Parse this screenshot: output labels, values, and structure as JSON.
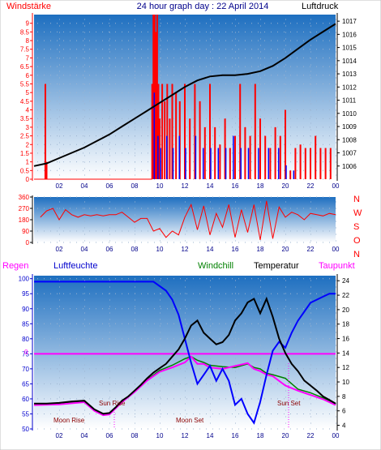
{
  "header": {
    "title": "24 hour graph day : 22 April 2014",
    "left_label": "Windstärke",
    "right_label": "Luftdruck"
  },
  "direction_labels": [
    "N",
    "W",
    "S",
    "O",
    "N"
  ],
  "bottom_header": {
    "regen": "Regen",
    "luftfeuchte": "Luftfeuchte",
    "windchill": "Windchill",
    "temperatur": "Temperatur",
    "taupunkt": "Taupunkt"
  },
  "annotations": {
    "sun_rise": "Sun Rise",
    "sun_set": "Sun Set",
    "moon_rise": "Moon Rise",
    "moon_set": "Moon Set"
  },
  "colors": {
    "wind_gust": "#ff0000",
    "wind_avg": "#0000ff",
    "pressure": "#000000",
    "humidity": "#0000ff",
    "temperature": "#000000",
    "windchill": "#008000",
    "dewpoint": "#ff00ff",
    "rain": "#ff00ff",
    "plot_top": "#1e6fc0",
    "plot_bottom": "#ffffff"
  },
  "chart_data": [
    {
      "type": "line",
      "title": "24 hour graph day : 22 April 2014",
      "x_ticks": [
        "02",
        "04",
        "06",
        "08",
        "10",
        "12",
        "14",
        "16",
        "18",
        "20",
        "22",
        "00"
      ],
      "xlim": [
        0,
        24
      ],
      "ylabel": "Windstärke",
      "ylim": [
        0,
        9.5
      ],
      "y_ticks": [
        0,
        0.5,
        1,
        1.5,
        2,
        2.5,
        3,
        3.5,
        4,
        4.5,
        5,
        5.5,
        6,
        6.5,
        7,
        7.5,
        8,
        8.5,
        9
      ],
      "y2label": "Luftdruck",
      "y2lim": [
        1005,
        1017.5
      ],
      "y2_ticks": [
        1006,
        1007,
        1008,
        1009,
        1010,
        1011,
        1012,
        1013,
        1014,
        1015,
        1016,
        1017
      ],
      "series": [
        {
          "name": "Windstärke",
          "axis": "left",
          "x": [
            0.9,
            0.9,
            1.0,
            1.0,
            9.4,
            9.5,
            9.6,
            9.7,
            9.8,
            9.9,
            10.0,
            10.2,
            10.4,
            10.6,
            10.8,
            11.0,
            11.3,
            11.6,
            12.0,
            12.4,
            12.8,
            13.2,
            13.6,
            14.0,
            14.4,
            14.8,
            15.2,
            15.6,
            16.0,
            16.4,
            16.8,
            17.2,
            17.6,
            18.0,
            18.4,
            18.8,
            19.2,
            19.6,
            20.0,
            20.4,
            20.8,
            21.2,
            21.6,
            22.0,
            22.4,
            22.8,
            23.2,
            23.6
          ],
          "y": [
            5.5,
            1.8,
            1.0,
            0.0,
            5.5,
            9.5,
            9.5,
            8.5,
            9.5,
            5.5,
            3.5,
            5.5,
            4.5,
            5.5,
            3.5,
            5.5,
            5.0,
            4.5,
            5.5,
            3.5,
            5.5,
            4.5,
            3.0,
            5.5,
            3.0,
            2.0,
            3.5,
            1.8,
            2.5,
            5.5,
            3.0,
            2.5,
            5.5,
            3.5,
            2.5,
            1.8,
            3.0,
            2.5,
            4.0,
            0.5,
            1.8,
            2.0,
            1.8,
            1.8,
            2.5,
            1.8,
            1.8,
            1.8
          ]
        },
        {
          "name": "Windstärke (Mittel)",
          "axis": "left",
          "x": [
            9.5,
            9.8,
            10.0,
            10.5,
            11.0,
            11.5,
            12.0,
            12.8,
            13.4,
            14.0,
            14.6,
            15.2,
            15.8,
            16.4,
            17.0,
            17.8,
            18.6,
            19.4,
            20.0,
            20.6
          ],
          "y": [
            5.0,
            2.5,
            1.8,
            2.5,
            1.8,
            2.5,
            1.8,
            2.5,
            1.8,
            1.8,
            1.8,
            1.8,
            2.5,
            1.8,
            1.8,
            1.8,
            1.8,
            1.8,
            0.8,
            0.5
          ]
        },
        {
          "name": "Luftdruck",
          "axis": "right",
          "x": [
            0,
            1,
            2,
            3,
            4,
            5,
            6,
            7,
            8,
            9,
            10,
            11,
            12,
            13,
            14,
            15,
            16,
            17,
            18,
            19,
            20,
            21,
            22,
            23,
            24
          ],
          "y": [
            1006.0,
            1006.2,
            1006.6,
            1007.0,
            1007.4,
            1007.9,
            1008.4,
            1009.0,
            1009.6,
            1010.2,
            1010.8,
            1011.4,
            1012.0,
            1012.5,
            1012.8,
            1012.9,
            1012.9,
            1013.0,
            1013.2,
            1013.6,
            1014.2,
            1014.9,
            1015.6,
            1016.2,
            1016.8
          ]
        }
      ]
    },
    {
      "type": "line",
      "x_ticks": [
        "02",
        "04",
        "06",
        "08",
        "10",
        "12",
        "14",
        "16",
        "18",
        "20",
        "22",
        "00"
      ],
      "xlim": [
        0,
        24
      ],
      "ylim": [
        0,
        360
      ],
      "y_ticks": [
        0,
        90,
        180,
        270,
        360
      ],
      "series": [
        {
          "name": "Windrichtung",
          "x": [
            0.5,
            1.0,
            1.5,
            2.0,
            2.5,
            3.0,
            3.5,
            4.0,
            4.5,
            5.0,
            5.5,
            6.0,
            6.5,
            7.0,
            7.5,
            8.0,
            8.5,
            9.0,
            9.5,
            10.0,
            10.5,
            11.0,
            11.5,
            12.0,
            12.5,
            13.0,
            13.5,
            14.0,
            14.5,
            15.0,
            15.5,
            16.0,
            16.5,
            17.0,
            17.5,
            18.0,
            18.5,
            19.0,
            19.5,
            20.0,
            20.5,
            21.0,
            21.5,
            22.0,
            22.5,
            23.0,
            23.5,
            24.0
          ],
          "y": [
            200,
            250,
            270,
            180,
            260,
            220,
            200,
            220,
            210,
            220,
            210,
            220,
            220,
            240,
            200,
            160,
            190,
            190,
            90,
            110,
            40,
            90,
            60,
            200,
            300,
            100,
            290,
            60,
            230,
            120,
            300,
            40,
            260,
            80,
            300,
            20,
            330,
            30,
            280,
            200,
            240,
            220,
            180,
            230,
            220,
            210,
            230,
            220
          ]
        }
      ]
    },
    {
      "type": "line",
      "x_ticks": [
        "02",
        "04",
        "06",
        "08",
        "10",
        "12",
        "14",
        "16",
        "18",
        "20",
        "22",
        "00"
      ],
      "xlim": [
        0,
        24
      ],
      "ylim": [
        50,
        101
      ],
      "y_ticks": [
        50,
        55,
        60,
        65,
        70,
        75,
        80,
        85,
        90,
        95,
        100
      ],
      "y2lim": [
        3.5,
        24.7
      ],
      "y2_ticks": [
        4,
        6,
        8,
        10,
        12,
        14,
        16,
        18,
        20,
        22,
        24
      ],
      "regen_value": "0",
      "series": [
        {
          "name": "Luftfeuchte",
          "axis": "left",
          "x": [
            0,
            4,
            8,
            9.5,
            10.5,
            11.0,
            11.5,
            12.0,
            12.5,
            13.0,
            13.5,
            14.0,
            14.5,
            15.0,
            15.5,
            16.0,
            16.5,
            17.0,
            17.5,
            18.0,
            18.5,
            19.0,
            19.5,
            20.0,
            20.5,
            21.0,
            21.5,
            22.0,
            22.5,
            23.0,
            23.5,
            24.0
          ],
          "y": [
            99,
            99,
            99,
            99,
            96,
            93,
            88,
            80,
            72,
            65,
            68,
            71,
            66,
            70,
            66,
            58,
            60,
            55,
            52,
            59,
            68,
            76,
            79,
            77,
            82,
            86,
            89,
            92,
            93,
            94,
            95,
            95
          ]
        },
        {
          "name": "Temperatur",
          "axis": "right",
          "x": [
            0,
            1,
            2,
            3,
            4,
            4.8,
            5.5,
            6.0,
            6.5,
            7.0,
            7.5,
            8.0,
            8.5,
            9.0,
            9.5,
            10.0,
            10.5,
            11.0,
            11.5,
            12.0,
            12.5,
            13.0,
            13.5,
            14.0,
            14.5,
            15.0,
            15.5,
            16.0,
            16.5,
            17.0,
            17.5,
            18.0,
            18.5,
            19.0,
            19.5,
            20.0,
            20.5,
            21.0,
            21.5,
            22.0,
            22.5,
            23.0,
            23.5,
            24.0
          ],
          "y": [
            7.0,
            7.0,
            7.1,
            7.3,
            7.4,
            6.2,
            5.6,
            5.7,
            6.5,
            7.4,
            8.0,
            8.8,
            9.6,
            10.5,
            11.3,
            11.9,
            12.5,
            13.5,
            14.5,
            16.0,
            17.8,
            18.5,
            16.8,
            16.0,
            15.2,
            15.5,
            16.5,
            18.5,
            19.5,
            21.0,
            21.5,
            19.5,
            21.5,
            19.0,
            16.0,
            14.0,
            12.5,
            11.5,
            10.2,
            9.5,
            8.8,
            8.0,
            7.5,
            7.0
          ]
        },
        {
          "name": "Windchill",
          "axis": "right",
          "x": [
            0,
            2,
            4,
            4.8,
            5.5,
            6.0,
            7.0,
            8.0,
            9.0,
            10.0,
            11.0,
            12.0,
            12.5,
            13.0,
            13.5,
            14.0,
            15.0,
            16.0,
            17.0,
            17.5,
            18.0,
            18.5,
            19.0,
            20.0,
            21.0,
            22.0,
            23.0,
            24.0
          ],
          "y": [
            6.9,
            7.0,
            7.3,
            6.1,
            5.5,
            5.6,
            7.3,
            8.7,
            10.3,
            11.6,
            12.3,
            13.2,
            13.5,
            13.0,
            12.7,
            12.3,
            12.1,
            12.0,
            12.5,
            12.0,
            11.8,
            11.2,
            11.0,
            10.5,
            9.0,
            8.5,
            7.8,
            7.0
          ]
        },
        {
          "name": "Taupunkt",
          "axis": "right",
          "x": [
            0,
            2,
            4,
            4.8,
            5.5,
            6.0,
            7.0,
            8.0,
            9.0,
            10.0,
            11.0,
            12.0,
            12.5,
            13.0,
            13.5,
            14.0,
            15.0,
            16.0,
            17.0,
            17.5,
            18.0,
            18.5,
            19.0,
            20.0,
            21.0,
            22.0,
            23.0,
            24.0
          ],
          "y": [
            6.8,
            6.9,
            7.2,
            6.0,
            5.4,
            5.5,
            7.2,
            8.6,
            10.2,
            11.4,
            12.0,
            12.7,
            13.5,
            12.5,
            12.5,
            12.0,
            11.8,
            12.2,
            12.6,
            11.8,
            11.5,
            11.0,
            10.8,
            9.5,
            8.8,
            8.2,
            7.6,
            6.8
          ]
        }
      ]
    }
  ]
}
